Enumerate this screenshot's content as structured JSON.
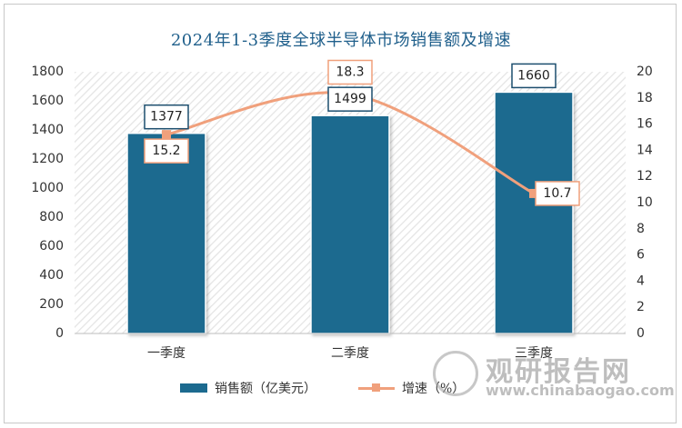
{
  "chart_data": {
    "type": "bar",
    "title": "2024年1-3季度全球半导体市场销售额及增速",
    "categories": [
      "一季度",
      "二季度",
      "三季度"
    ],
    "series": [
      {
        "name": "销售额（亿美元）",
        "type": "bar",
        "axis": "left",
        "values": [
          1377,
          1499,
          1660
        ],
        "color": "#1c6a8f"
      },
      {
        "name": "增速（%）",
        "type": "line",
        "axis": "right",
        "values": [
          15.2,
          18.3,
          10.7
        ],
        "color": "#f0a07c"
      }
    ],
    "y_left": {
      "min": 0,
      "max": 1800,
      "step": 200,
      "ticks": [
        "0",
        "200",
        "400",
        "600",
        "800",
        "1000",
        "1200",
        "1400",
        "1600",
        "1800"
      ]
    },
    "y_right": {
      "min": 0,
      "max": 20,
      "step": 2,
      "ticks": [
        "0",
        "2",
        "4",
        "6",
        "8",
        "10",
        "12",
        "14",
        "16",
        "18",
        "20"
      ]
    },
    "legend_position": "bottom",
    "grid": false
  },
  "watermark": {
    "text": "观研报告网",
    "url": "www.chinabaogao.com"
  }
}
